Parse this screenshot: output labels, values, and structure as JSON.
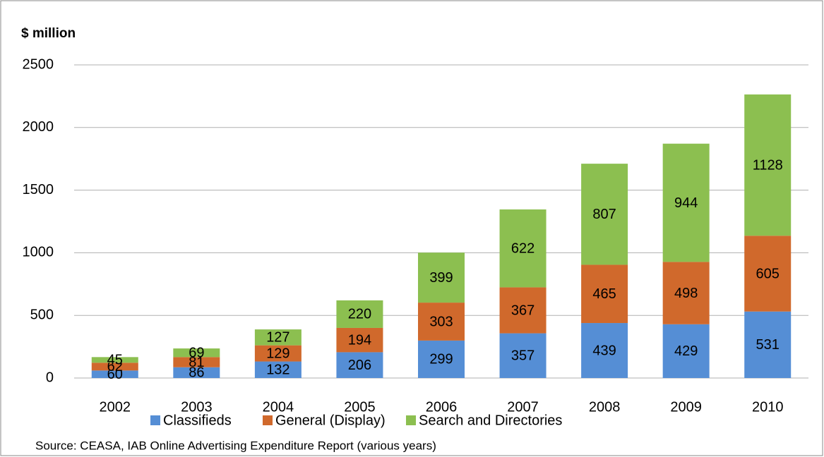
{
  "chart_data": {
    "type": "stacked_bar",
    "title": "$ million",
    "source": "Source: CEASA, IAB Online Advertising Expenditure Report (various years)",
    "categories": [
      "2002",
      "2003",
      "2004",
      "2005",
      "2006",
      "2007",
      "2008",
      "2009",
      "2010"
    ],
    "series": [
      {
        "name": "Classifieds",
        "color": "#558ed5",
        "values": [
          60,
          86,
          132,
          206,
          299,
          357,
          439,
          429,
          531
        ]
      },
      {
        "name": "General (Display)",
        "color": "#d0692c",
        "values": [
          62,
          81,
          129,
          194,
          303,
          367,
          465,
          498,
          605
        ]
      },
      {
        "name": "Search and Directories",
        "color": "#8cbf50",
        "values": [
          45,
          69,
          127,
          220,
          399,
          622,
          807,
          944,
          1128
        ]
      }
    ],
    "ylim": [
      0,
      2500
    ],
    "yticks": [
      0,
      500,
      1000,
      1500,
      2000,
      2500
    ],
    "grid": true,
    "legend": "bottom"
  }
}
